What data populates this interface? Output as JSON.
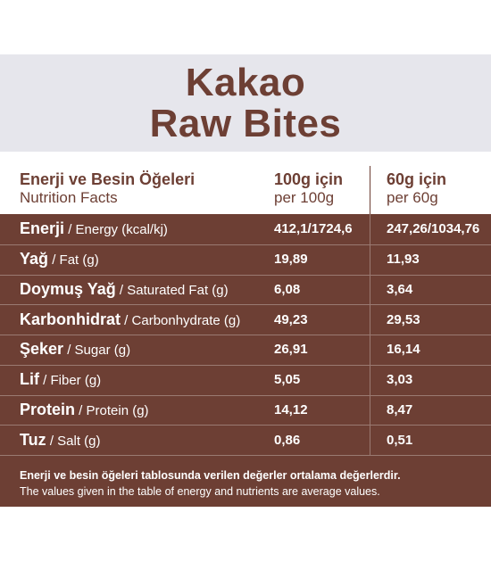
{
  "title": {
    "line1": "Kakao",
    "line2": "Raw Bites"
  },
  "header": {
    "col1": {
      "main": "Enerji ve Besin Öğeleri",
      "sub": "Nutrition Facts"
    },
    "col2": {
      "main": "100g için",
      "sub": "per 100g"
    },
    "col3": {
      "main": "60g için",
      "sub": "per 60g"
    }
  },
  "rows": [
    {
      "tr": "Enerji",
      "en": " / Energy (kcal/kj)",
      "v100": "412,1/1724,6",
      "v60": "247,26/1034,76"
    },
    {
      "tr": "Yağ",
      "en": " / Fat (g)",
      "v100": "19,89",
      "v60": "11,93"
    },
    {
      "tr": "Doymuş Yağ",
      "en": " / Saturated Fat (g)",
      "v100": "6,08",
      "v60": "3,64"
    },
    {
      "tr": "Karbonhidrat",
      "en": " / Carbonhydrate (g)",
      "v100": "49,23",
      "v60": "29,53"
    },
    {
      "tr": "Şeker",
      "en": " / Sugar (g)",
      "v100": "26,91",
      "v60": "16,14"
    },
    {
      "tr": "Lif",
      "en": " / Fiber (g)",
      "v100": "5,05",
      "v60": "3,03"
    },
    {
      "tr": "Protein",
      "en": " / Protein (g)",
      "v100": "14,12",
      "v60": "8,47"
    },
    {
      "tr": "Tuz",
      "en": " / Salt (g)",
      "v100": "0,86",
      "v60": "0,51"
    }
  ],
  "footer": {
    "tr": "Enerji ve besin öğeleri tablosunda verilen değerler ortalama değerlerdir.",
    "en": "The values given in the table of energy and nutrients are average values."
  },
  "colors": {
    "brown": "#6d3f34",
    "band": "#e6e6ec"
  }
}
